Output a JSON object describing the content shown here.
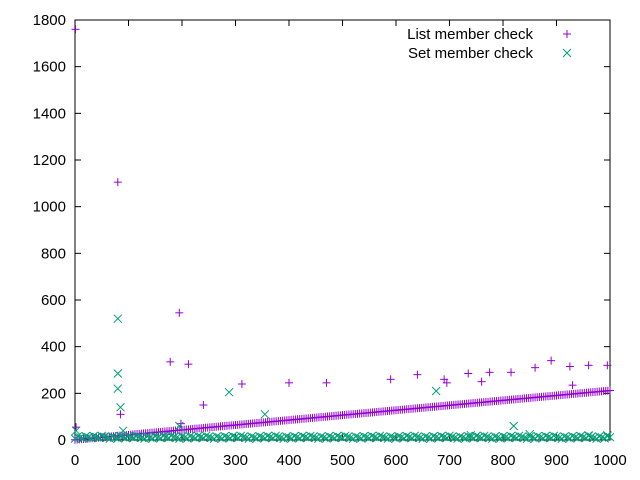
{
  "chart_data": {
    "type": "scatter",
    "title": "",
    "xlabel": "",
    "ylabel": "",
    "xlim": [
      0,
      1000
    ],
    "ylim": [
      0,
      1800
    ],
    "x_ticks": [
      0,
      100,
      200,
      300,
      400,
      500,
      600,
      700,
      800,
      900,
      1000
    ],
    "y_ticks": [
      0,
      200,
      400,
      600,
      800,
      1000,
      1200,
      1400,
      1600,
      1800
    ],
    "grid": false,
    "legend_position": "top-right",
    "series": [
      {
        "name": "List member check",
        "marker": "plus",
        "color": "#9400d3",
        "trend": {
          "x": [
            0,
            1000
          ],
          "y": [
            1,
            212
          ]
        },
        "points": [
          [
            1,
            1760
          ],
          [
            2,
            55
          ],
          [
            80,
            1105
          ],
          [
            85,
            110
          ],
          [
            178,
            335
          ],
          [
            195,
            545
          ],
          [
            198,
            70
          ],
          [
            212,
            325
          ],
          [
            240,
            150
          ],
          [
            312,
            240
          ],
          [
            400,
            245
          ],
          [
            470,
            245
          ],
          [
            590,
            260
          ],
          [
            640,
            280
          ],
          [
            690,
            260
          ],
          [
            695,
            245
          ],
          [
            735,
            285
          ],
          [
            760,
            250
          ],
          [
            775,
            290
          ],
          [
            815,
            290
          ],
          [
            860,
            310
          ],
          [
            890,
            340
          ],
          [
            925,
            315
          ],
          [
            930,
            235
          ],
          [
            960,
            320
          ],
          [
            995,
            320
          ]
        ]
      },
      {
        "name": "Set member check",
        "marker": "cross",
        "color": "#009e73",
        "baseline": 12,
        "points": [
          [
            2,
            40
          ],
          [
            80,
            520
          ],
          [
            80,
            285
          ],
          [
            80,
            220
          ],
          [
            85,
            140
          ],
          [
            90,
            40
          ],
          [
            195,
            60
          ],
          [
            288,
            205
          ],
          [
            355,
            110
          ],
          [
            675,
            210
          ],
          [
            740,
            20
          ],
          [
            820,
            60
          ],
          [
            850,
            25
          ],
          [
            960,
            20
          ],
          [
            995,
            20
          ]
        ]
      }
    ]
  }
}
